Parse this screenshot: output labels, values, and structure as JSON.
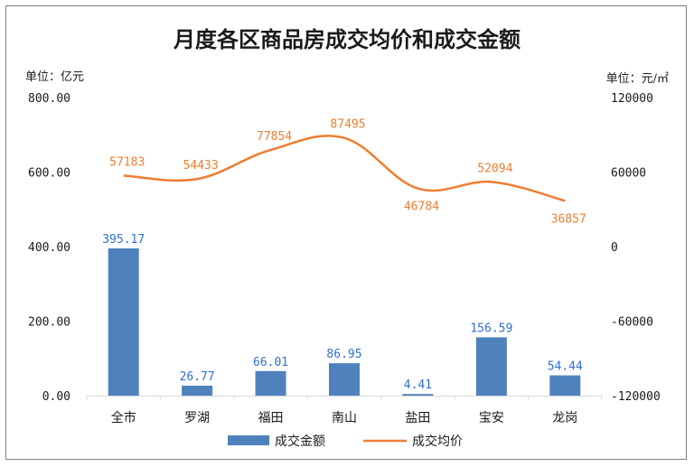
{
  "chart_data": {
    "type": "bar",
    "title": "月度各区商品房成交均价和成交金额",
    "categories": [
      "全市",
      "罗湖",
      "福田",
      "南山",
      "盐田",
      "宝安",
      "龙岗"
    ],
    "series": [
      {
        "name": "成交金额",
        "type": "bar",
        "axis": "left",
        "color": "#4f81bd",
        "values": [
          395.17,
          26.77,
          66.01,
          86.95,
          4.41,
          156.59,
          54.44
        ],
        "labels": [
          "395.17",
          "26.77",
          "66.01",
          "86.95",
          "4.41",
          "156.59",
          "54.44"
        ]
      },
      {
        "name": "成交均价",
        "type": "line",
        "axis": "right",
        "color": "#ed7d31",
        "smooth": true,
        "values": [
          57183,
          54433,
          77854,
          87495,
          46784,
          52094,
          36857
        ],
        "labels": [
          "57183",
          "54433",
          "77854",
          "87495",
          "46784",
          "52094",
          "36857"
        ]
      }
    ],
    "left_axis": {
      "unit": "单位：亿元",
      "ylim": [
        0,
        800
      ],
      "ticks": [
        0,
        200,
        400,
        600,
        800
      ],
      "tick_labels": [
        "0.00",
        "200.00",
        "400.00",
        "600.00",
        "800.00"
      ]
    },
    "right_axis": {
      "unit": "单位：元/㎡",
      "ylim": [
        -120000,
        120000
      ],
      "ticks": [
        -120000,
        -60000,
        0,
        60000,
        120000
      ],
      "tick_labels": [
        "-120000",
        "-60000",
        "0",
        "60000",
        "120000"
      ]
    },
    "grid": false,
    "legend_position": "bottom"
  }
}
